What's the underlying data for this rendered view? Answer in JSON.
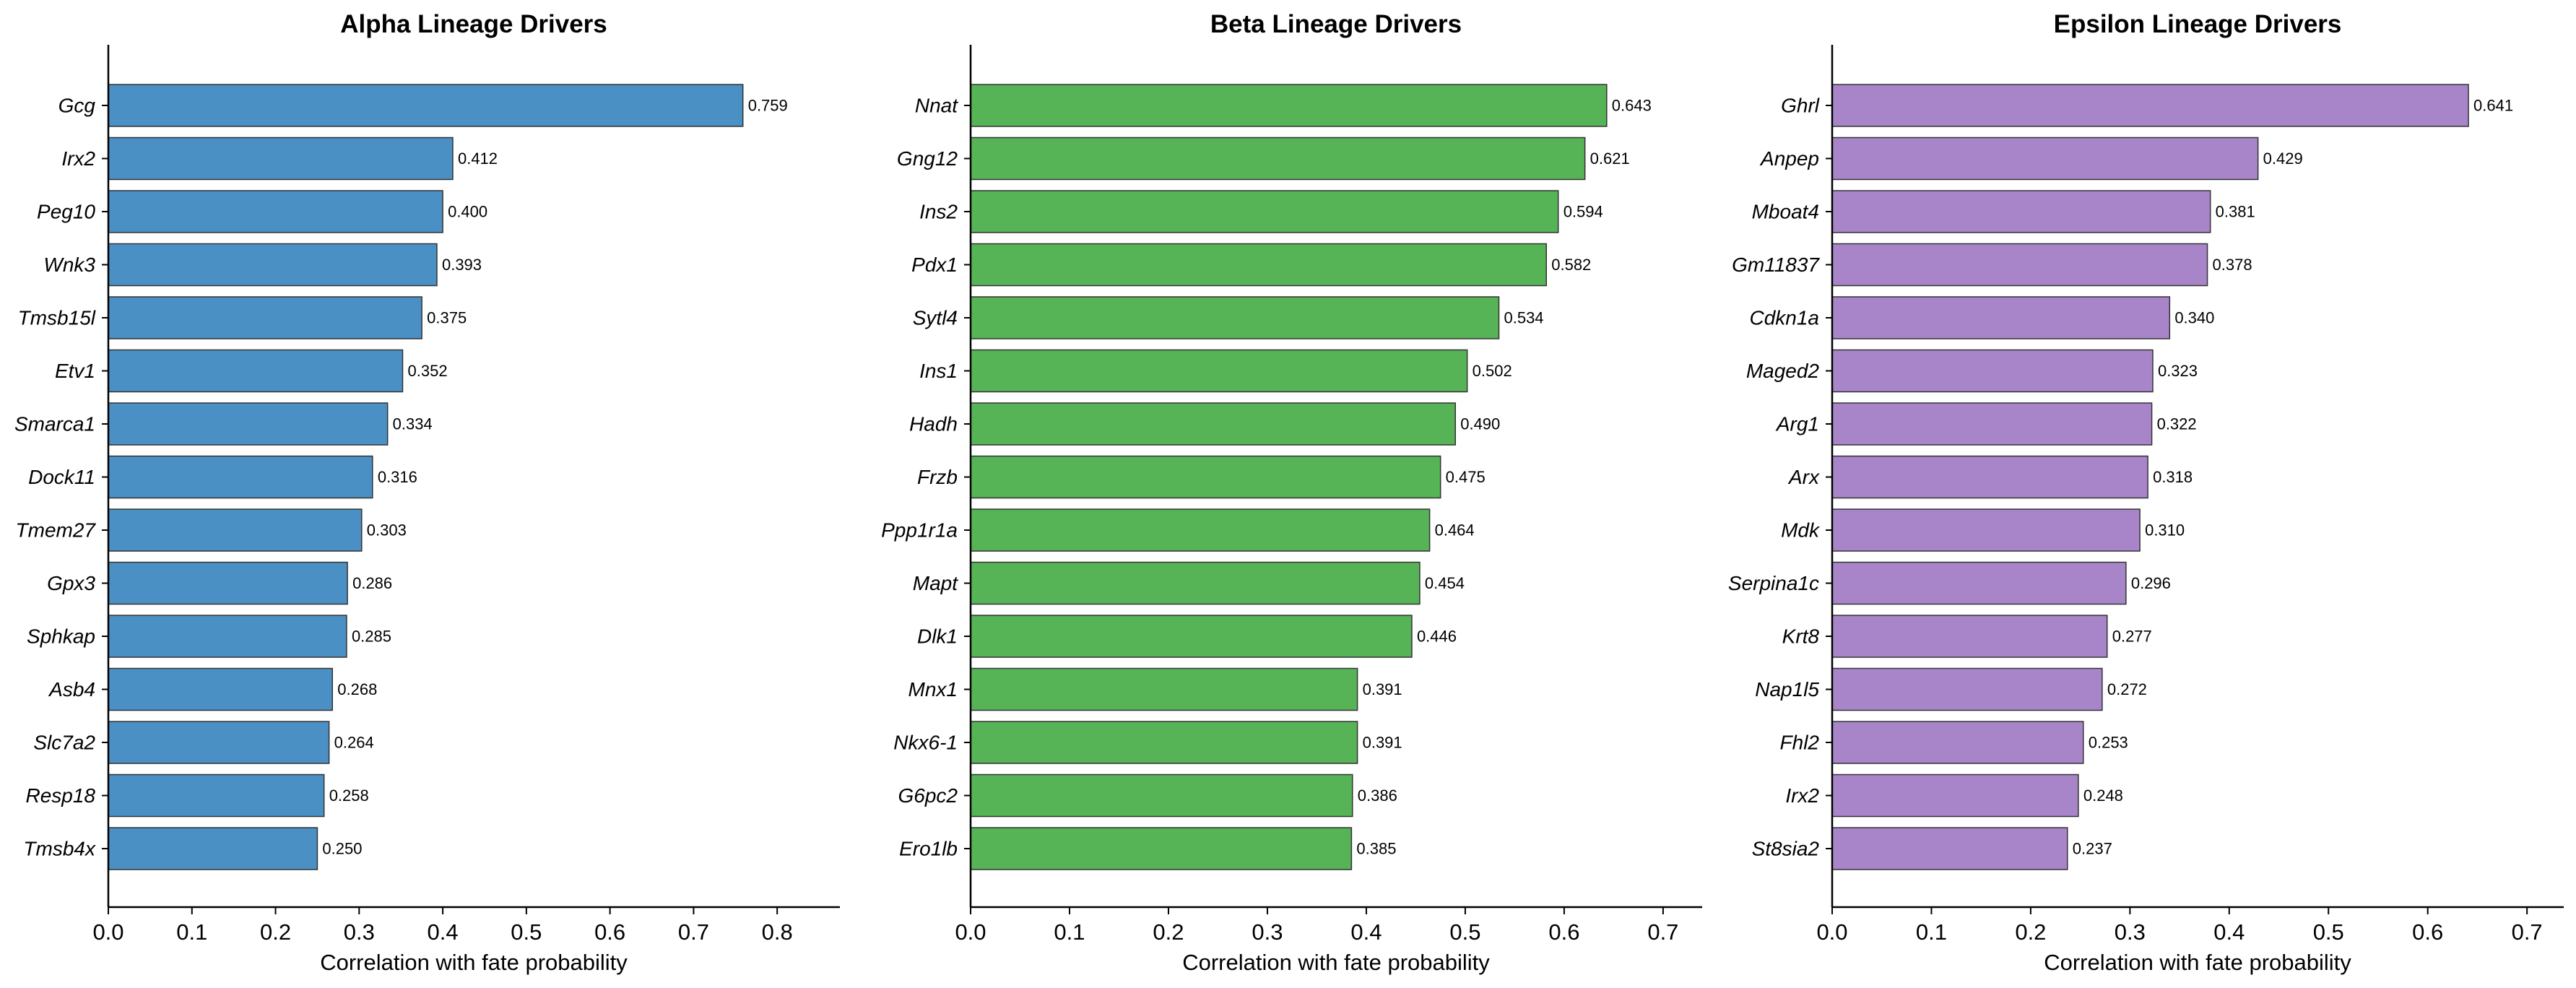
{
  "chart_data": [
    {
      "type": "bar",
      "orientation": "horizontal",
      "title": "Alpha Lineage Drivers",
      "xlabel": "Correlation with fate probability",
      "ylabel": "",
      "color": "#4a90c4",
      "xlim": [
        0.0,
        0.875
      ],
      "xticks": [
        "0.0",
        "0.1",
        "0.2",
        "0.3",
        "0.4",
        "0.5",
        "0.6",
        "0.7",
        "0.8"
      ],
      "categories": [
        "Gcg",
        "Irx2",
        "Peg10",
        "Wnk3",
        "Tmsb15l",
        "Etv1",
        "Smarca1",
        "Dock11",
        "Tmem27",
        "Gpx3",
        "Sphkap",
        "Asb4",
        "Slc7a2",
        "Resp18",
        "Tmsb4x"
      ],
      "values": [
        0.759,
        0.412,
        0.4,
        0.393,
        0.375,
        0.352,
        0.334,
        0.316,
        0.303,
        0.286,
        0.285,
        0.268,
        0.264,
        0.258,
        0.25
      ],
      "value_labels": [
        "0.759",
        "0.412",
        "0.400",
        "0.393",
        "0.375",
        "0.352",
        "0.334",
        "0.316",
        "0.303",
        "0.286",
        "0.285",
        "0.268",
        "0.264",
        "0.258",
        "0.250"
      ]
    },
    {
      "type": "bar",
      "orientation": "horizontal",
      "title": "Beta Lineage Drivers",
      "xlabel": "Correlation with fate probability",
      "ylabel": "",
      "color": "#56b356",
      "xlim": [
        0.0,
        0.7395
      ],
      "xticks": [
        "0.0",
        "0.1",
        "0.2",
        "0.3",
        "0.4",
        "0.5",
        "0.6",
        "0.7"
      ],
      "categories": [
        "Nnat",
        "Gng12",
        "Ins2",
        "Pdx1",
        "Sytl4",
        "Ins1",
        "Hadh",
        "Frzb",
        "Ppp1r1a",
        "Mapt",
        "Dlk1",
        "Mnx1",
        "Nkx6-1",
        "G6pc2",
        "Ero1lb"
      ],
      "values": [
        0.643,
        0.621,
        0.594,
        0.582,
        0.534,
        0.502,
        0.49,
        0.475,
        0.464,
        0.454,
        0.446,
        0.391,
        0.391,
        0.386,
        0.385
      ],
      "value_labels": [
        "0.643",
        "0.621",
        "0.594",
        "0.582",
        "0.534",
        "0.502",
        "0.490",
        "0.475",
        "0.464",
        "0.454",
        "0.446",
        "0.391",
        "0.391",
        "0.386",
        "0.385"
      ]
    },
    {
      "type": "bar",
      "orientation": "horizontal",
      "title": "Epsilon Lineage Drivers",
      "xlabel": "Correlation with fate probability",
      "ylabel": "",
      "color": "#a885c9",
      "xlim": [
        0.0,
        0.737
      ],
      "xticks": [
        "0.0",
        "0.1",
        "0.2",
        "0.3",
        "0.4",
        "0.5",
        "0.6",
        "0.7"
      ],
      "categories": [
        "Ghrl",
        "Anpep",
        "Mboat4",
        "Gm11837",
        "Cdkn1a",
        "Maged2",
        "Arg1",
        "Arx",
        "Mdk",
        "Serpina1c",
        "Krt8",
        "Nap1l5",
        "Fhl2",
        "Irx2",
        "St8sia2"
      ],
      "values": [
        0.641,
        0.429,
        0.381,
        0.378,
        0.34,
        0.323,
        0.322,
        0.318,
        0.31,
        0.296,
        0.277,
        0.272,
        0.253,
        0.248,
        0.237
      ],
      "value_labels": [
        "0.641",
        "0.429",
        "0.381",
        "0.378",
        "0.340",
        "0.323",
        "0.322",
        "0.318",
        "0.310",
        "0.296",
        "0.277",
        "0.272",
        "0.253",
        "0.248",
        "0.237"
      ]
    }
  ]
}
